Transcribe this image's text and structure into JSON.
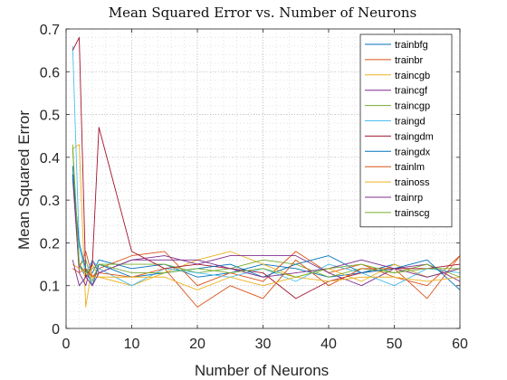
{
  "chart_data": {
    "type": "line",
    "title": "Mean Squared Error vs. Number of Neurons",
    "xlabel": "Number of Neurons",
    "ylabel": "Mean Squared Error",
    "xlim": [
      0,
      60
    ],
    "ylim": [
      0,
      0.7
    ],
    "xticks": [
      "0",
      "10",
      "20",
      "30",
      "40",
      "50",
      "60"
    ],
    "yticks": [
      "0",
      "0.1",
      "0.2",
      "0.3",
      "0.4",
      "0.5",
      "0.6",
      "0.7"
    ],
    "grid": true,
    "minor_grid": true,
    "legend_position": "top-right",
    "x": [
      1,
      2,
      3,
      4,
      5,
      10,
      15,
      20,
      25,
      30,
      35,
      40,
      45,
      50,
      55,
      60
    ],
    "series": [
      {
        "name": "trainbfg",
        "color": "#0072BD",
        "values": [
          0.38,
          0.15,
          0.12,
          0.13,
          0.16,
          0.14,
          0.15,
          0.12,
          0.13,
          0.15,
          0.14,
          0.12,
          0.13,
          0.15,
          0.12,
          0.14
        ]
      },
      {
        "name": "trainbr",
        "color": "#D95319",
        "values": [
          0.35,
          0.14,
          0.18,
          0.12,
          0.14,
          0.17,
          0.18,
          0.1,
          0.13,
          0.11,
          0.18,
          0.13,
          0.15,
          0.12,
          0.1,
          0.17
        ]
      },
      {
        "name": "traincgb",
        "color": "#EDB120",
        "values": [
          0.42,
          0.43,
          0.05,
          0.15,
          0.12,
          0.1,
          0.13,
          0.16,
          0.18,
          0.15,
          0.12,
          0.14,
          0.11,
          0.15,
          0.12,
          0.14
        ]
      },
      {
        "name": "traincgf",
        "color": "#7E2F8E",
        "values": [
          0.36,
          0.13,
          0.1,
          0.16,
          0.13,
          0.16,
          0.17,
          0.15,
          0.17,
          0.17,
          0.17,
          0.13,
          0.1,
          0.14,
          0.15,
          0.11
        ]
      },
      {
        "name": "traincgp",
        "color": "#77AC30",
        "values": [
          0.42,
          0.15,
          0.16,
          0.11,
          0.15,
          0.15,
          0.15,
          0.13,
          0.14,
          0.16,
          0.15,
          0.12,
          0.14,
          0.13,
          0.15,
          0.12
        ]
      },
      {
        "name": "traingd",
        "color": "#4DBEEE",
        "values": [
          0.66,
          0.19,
          0.13,
          0.16,
          0.14,
          0.1,
          0.14,
          0.13,
          0.12,
          0.14,
          0.11,
          0.15,
          0.13,
          0.1,
          0.14,
          0.13
        ]
      },
      {
        "name": "traingdm",
        "color": "#A2142F",
        "values": [
          0.65,
          0.68,
          0.12,
          0.15,
          0.47,
          0.18,
          0.14,
          0.15,
          0.14,
          0.13,
          0.07,
          0.11,
          0.13,
          0.14,
          0.14,
          0.15
        ]
      },
      {
        "name": "traingdx",
        "color": "#0072BD",
        "values": [
          0.36,
          0.2,
          0.14,
          0.1,
          0.15,
          0.12,
          0.13,
          0.14,
          0.15,
          0.12,
          0.15,
          0.17,
          0.13,
          0.14,
          0.16,
          0.09
        ]
      },
      {
        "name": "trainlm",
        "color": "#D95319",
        "values": [
          0.14,
          0.13,
          0.14,
          0.12,
          0.13,
          0.12,
          0.14,
          0.05,
          0.1,
          0.07,
          0.16,
          0.1,
          0.14,
          0.14,
          0.07,
          0.17
        ]
      },
      {
        "name": "trainoss",
        "color": "#EDB120",
        "values": [
          0.15,
          0.14,
          0.13,
          0.12,
          0.12,
          0.12,
          0.12,
          0.09,
          0.12,
          0.1,
          0.12,
          0.11,
          0.12,
          0.12,
          0.11,
          0.12
        ]
      },
      {
        "name": "trainrp",
        "color": "#7E2F8E",
        "values": [
          0.16,
          0.1,
          0.12,
          0.1,
          0.13,
          0.16,
          0.16,
          0.16,
          0.14,
          0.12,
          0.13,
          0.14,
          0.16,
          0.14,
          0.12,
          0.14
        ]
      },
      {
        "name": "trainscg",
        "color": "#77AC30",
        "values": [
          0.43,
          0.15,
          0.13,
          0.14,
          0.15,
          0.13,
          0.13,
          0.14,
          0.13,
          0.14,
          0.12,
          0.14,
          0.15,
          0.13,
          0.14,
          0.14
        ]
      }
    ]
  }
}
